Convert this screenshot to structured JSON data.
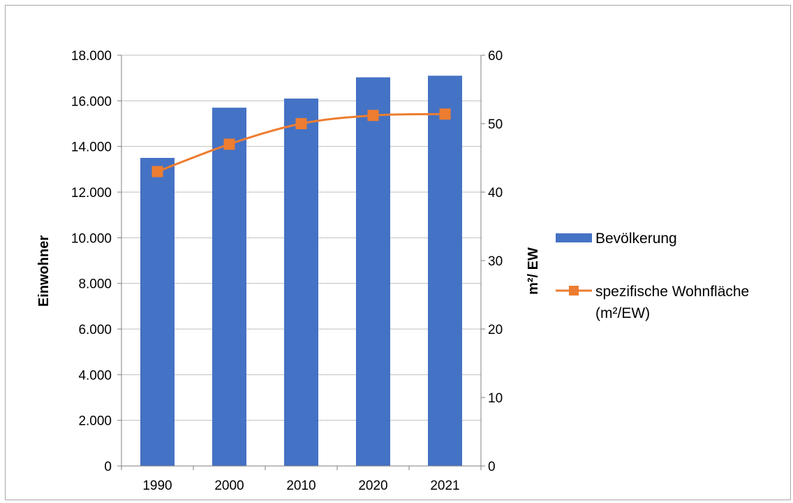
{
  "chart_data": {
    "type": "bar",
    "categories": [
      "1990",
      "2000",
      "2010",
      "2020",
      "2021"
    ],
    "series": [
      {
        "name": "Bevölkerung",
        "type": "bar",
        "axis": "left",
        "values": [
          13500,
          15700,
          16100,
          17030,
          17100
        ],
        "color": "#4472C4"
      },
      {
        "name": "spezifische Wohnfläche (m²/EW)",
        "name_lines": [
          "spezifische Wohnfläche",
          "(m²/EW)"
        ],
        "type": "line",
        "axis": "right",
        "values": [
          43,
          47,
          50,
          51.2,
          51.4
        ],
        "color": "#ED7D31",
        "marker": "square"
      }
    ],
    "ylabel": "Einwohner",
    "y2label": "m²/ EW",
    "ylim": [
      0,
      18000
    ],
    "yticks": [
      0,
      2000,
      4000,
      6000,
      8000,
      10000,
      12000,
      14000,
      16000,
      18000
    ],
    "ytick_labels": [
      "0",
      "2.000",
      "4.000",
      "6.000",
      "8.000",
      "10.000",
      "12.000",
      "14.000",
      "16.000",
      "18.000"
    ],
    "y2lim": [
      0,
      60
    ],
    "y2ticks": [
      0,
      10,
      20,
      30,
      40,
      50,
      60
    ],
    "y2tick_labels": [
      "0",
      "10",
      "20",
      "30",
      "40",
      "50",
      "60"
    ],
    "grid": true,
    "legend_position": "right",
    "colors": {
      "grid": "#bfbfbf",
      "axis": "#7f7f7f",
      "frame": "#a6a6a6"
    }
  }
}
